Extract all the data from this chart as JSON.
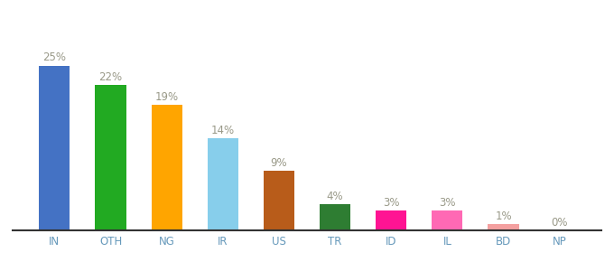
{
  "categories": [
    "IN",
    "OTH",
    "NG",
    "IR",
    "US",
    "TR",
    "ID",
    "IL",
    "BD",
    "NP"
  ],
  "values": [
    25,
    22,
    19,
    14,
    9,
    4,
    3,
    3,
    1,
    0
  ],
  "bar_colors": [
    "#4472C4",
    "#22AA22",
    "#FFA500",
    "#87CEEB",
    "#B85C1A",
    "#2E7D32",
    "#FF1493",
    "#FF69B4",
    "#F4A0A0",
    "#D3D3D3"
  ],
  "labels": [
    "25%",
    "22%",
    "19%",
    "14%",
    "9%",
    "4%",
    "3%",
    "3%",
    "1%",
    "0%"
  ],
  "ylim": [
    0,
    30
  ],
  "background_color": "#ffffff",
  "label_fontsize": 8.5,
  "tick_fontsize": 8.5,
  "label_color": "#999988",
  "tick_color": "#6699BB"
}
